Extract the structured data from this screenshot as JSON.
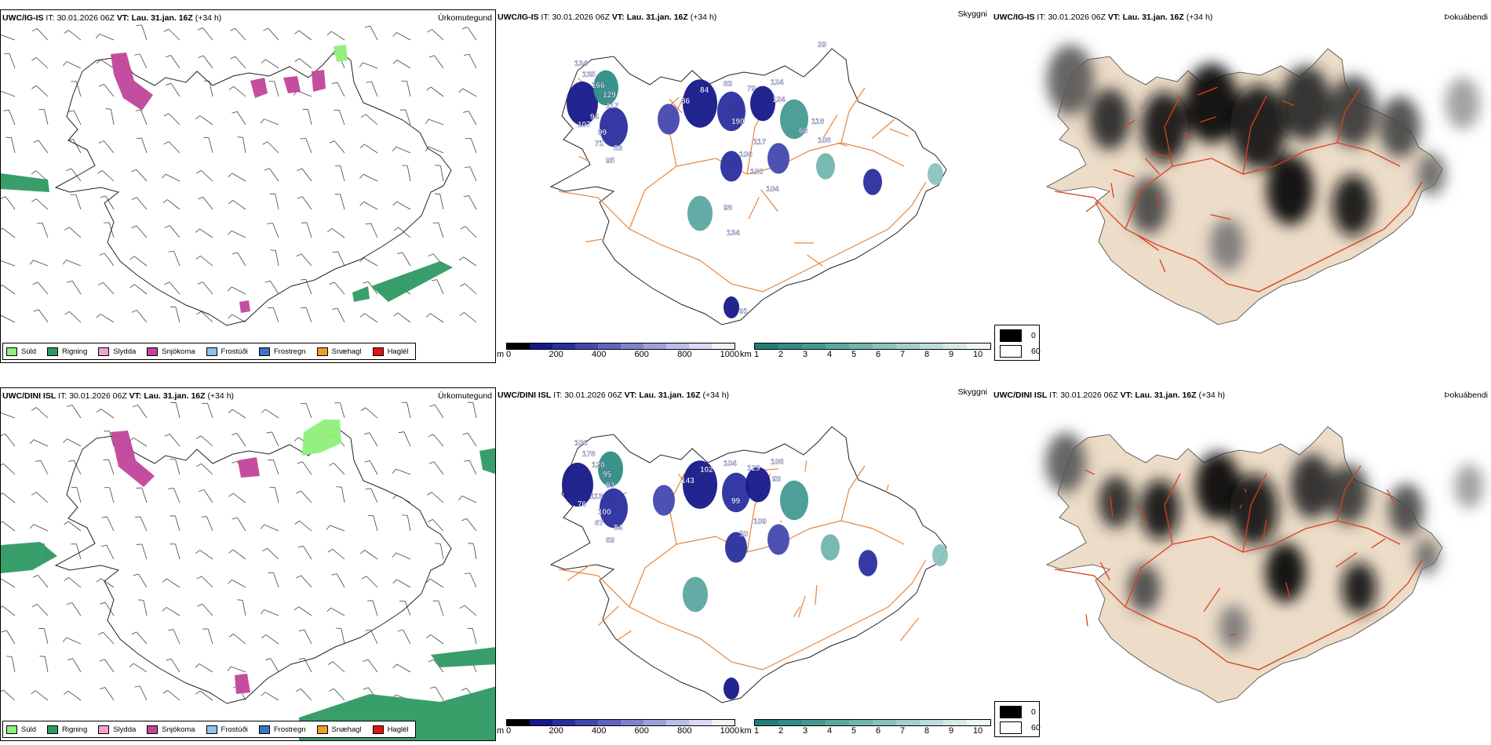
{
  "rows": [
    {
      "model": "UWC/IG-IS",
      "it_label": "IT:",
      "it_value": "30.01.2026 06Z",
      "vt_label": "VT:",
      "vt_value": "Lau. 31.jan. 16Z",
      "lead": "(+34 h)"
    },
    {
      "model": "UWC/DINI ISL",
      "it_label": "IT:",
      "it_value": "30.01.2026 06Z",
      "vt_label": "VT:",
      "vt_value": "Lau. 31.jan. 16Z",
      "lead": "(+34 h)"
    }
  ],
  "panels": {
    "precip_type_title": "Úrkomutegund",
    "cloud_base_title": "Skyggni",
    "fog_title": "Þokuábendi"
  },
  "precip_legend": [
    {
      "label": "Súld",
      "color": "#8ef07a"
    },
    {
      "label": "Rigning",
      "color": "#2e9a62"
    },
    {
      "label": "Slydda",
      "color": "#f0a3cf"
    },
    {
      "label": "Snjókoma",
      "color": "#c0459a"
    },
    {
      "label": "Frostúði",
      "color": "#8ec2ee"
    },
    {
      "label": "Frostregn",
      "color": "#3c74c4"
    },
    {
      "label": "Snæhagl",
      "color": "#ef9b25"
    },
    {
      "label": "Haglél",
      "color": "#e01515"
    }
  ],
  "ceiling_scale": {
    "unit": "m",
    "ticks": [
      "0",
      "200",
      "400",
      "600",
      "800",
      "1000"
    ],
    "colors": [
      "#000000",
      "#16198a",
      "#2a2e9e",
      "#4348b0",
      "#5f64bf",
      "#7f83cd",
      "#9da0db",
      "#bcbee8",
      "#d9daf3",
      "#f2f2fb"
    ]
  },
  "visibility_scale": {
    "unit": "km",
    "ticks": [
      "1",
      "2",
      "3",
      "4",
      "5",
      "6",
      "7",
      "8",
      "9",
      "10"
    ],
    "colors": [
      "#1f7f78",
      "#2f8d85",
      "#449a92",
      "#5aa8a0",
      "#72b5ad",
      "#8ac3bc",
      "#a3d0ca",
      "#bcdeda",
      "#d5ebe8",
      "#eef7f6"
    ]
  },
  "fog_scale": {
    "ticks": [
      "0",
      "60"
    ],
    "colors": [
      "#000000",
      "#ffffff"
    ]
  },
  "station_labels": {
    "top": [
      "134",
      "135",
      "166",
      "129",
      "117",
      "94",
      "107",
      "99",
      "71",
      "83",
      "95",
      "86",
      "84",
      "83",
      "79",
      "124",
      "124",
      "190",
      "106",
      "117",
      "120",
      "104",
      "98",
      "134",
      "60",
      "118",
      "108",
      "91",
      "29"
    ],
    "bottom": [
      "106",
      "178",
      "120",
      "95",
      "93",
      "113",
      "76",
      "100",
      "87",
      "84",
      "69",
      "143",
      "102",
      "104",
      "129",
      "106",
      "93",
      "99",
      "50",
      "109"
    ]
  },
  "colors": {
    "coast": "#222222",
    "roads_orange": "#e8843a",
    "roads_red": "#d9401c",
    "land_beige": "#ecdcc8",
    "rivers": "#8aa0e6"
  }
}
